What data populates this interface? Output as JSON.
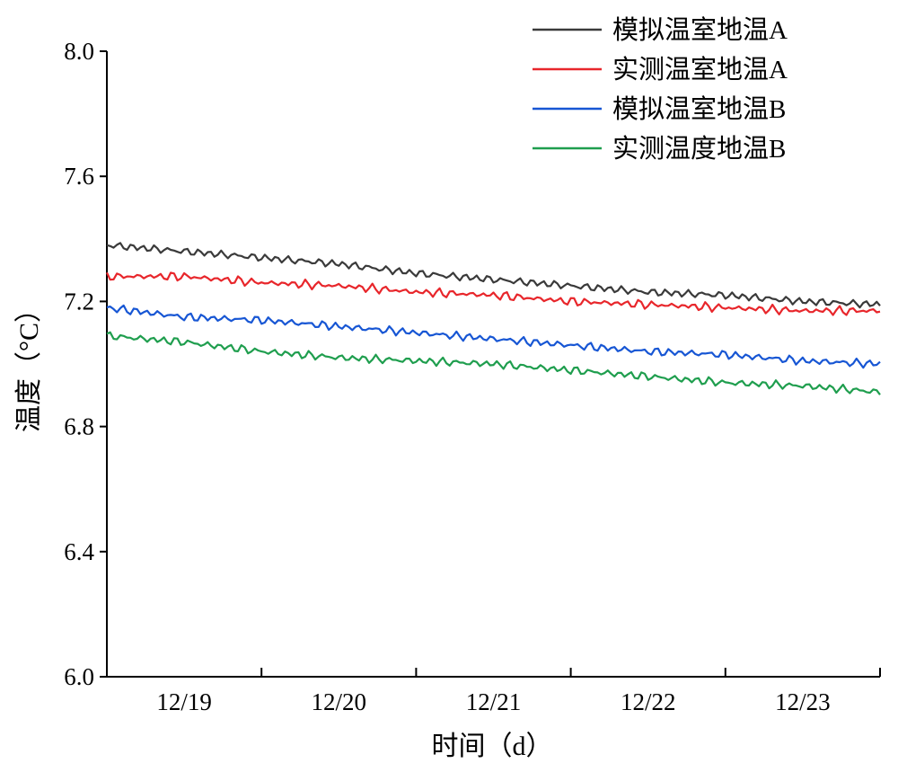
{
  "chart_data": {
    "type": "line",
    "xlabel": "时间（d）",
    "ylabel": "温度（°C）",
    "ylim": [
      6.0,
      8.0
    ],
    "yticks": [
      "6.0",
      "6.4",
      "6.8",
      "7.2",
      "7.6",
      "8.0"
    ],
    "xlim": [
      0,
      5
    ],
    "categories": [
      "12/19",
      "12/20",
      "12/21",
      "12/22",
      "12/23"
    ],
    "grid": false,
    "legend_position": "top-right",
    "series": [
      {
        "name": "模拟温室地温A",
        "color": "#3a3a3a",
        "x": [
          0,
          0.5,
          1,
          1.5,
          2,
          2.5,
          3,
          3.5,
          4,
          4.5,
          5
        ],
        "values": [
          7.38,
          7.36,
          7.34,
          7.32,
          7.29,
          7.27,
          7.25,
          7.23,
          7.22,
          7.2,
          7.19
        ]
      },
      {
        "name": "实测温室地温A",
        "color": "#e8262b",
        "x": [
          0,
          0.5,
          1,
          1.5,
          2,
          2.5,
          3,
          3.5,
          4,
          4.5,
          5
        ],
        "values": [
          7.28,
          7.28,
          7.26,
          7.25,
          7.23,
          7.22,
          7.2,
          7.19,
          7.18,
          7.17,
          7.17
        ]
      },
      {
        "name": "模拟温室地温B",
        "color": "#1756d4",
        "x": [
          0,
          0.5,
          1,
          1.5,
          2,
          2.5,
          3,
          3.5,
          4,
          4.5,
          5
        ],
        "values": [
          7.18,
          7.15,
          7.14,
          7.12,
          7.1,
          7.08,
          7.06,
          7.04,
          7.03,
          7.01,
          7.0
        ]
      },
      {
        "name": "实测温度地温B",
        "color": "#1f9e4e",
        "x": [
          0,
          0.5,
          1,
          1.5,
          2,
          2.5,
          3,
          3.5,
          4,
          4.5,
          5
        ],
        "values": [
          7.09,
          7.07,
          7.04,
          7.02,
          7.01,
          7.0,
          6.98,
          6.96,
          6.94,
          6.93,
          6.91
        ]
      }
    ]
  }
}
